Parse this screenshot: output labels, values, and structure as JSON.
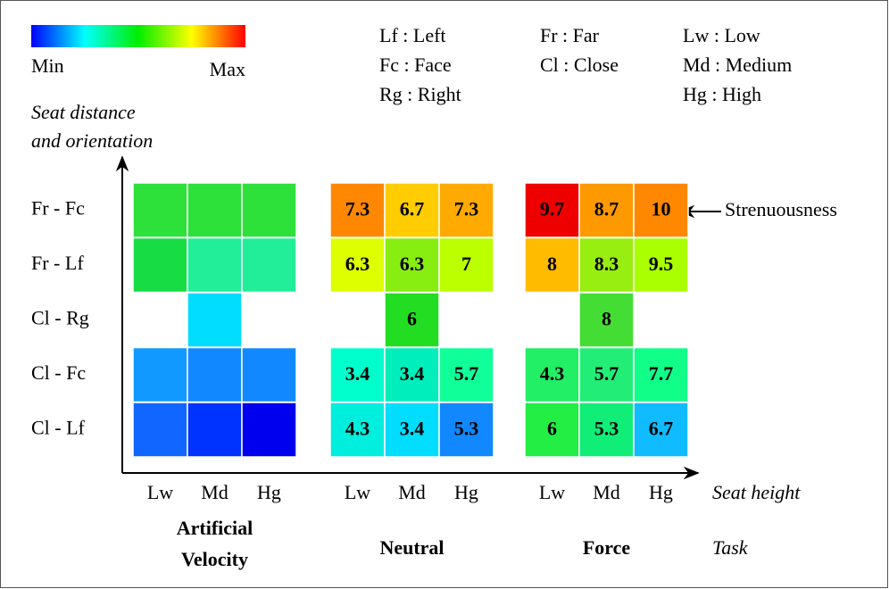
{
  "colorbar": {
    "min": "Min",
    "max": "Max",
    "colors": [
      "#0000ff",
      "#00ffff",
      "#00ee00",
      "#ffff00",
      "#ff0000"
    ]
  },
  "legend": [
    [
      "Lf : Left",
      "Fc : Face",
      "Rg : Right"
    ],
    [
      "Fr : Far",
      "Cl : Close"
    ],
    [
      "Lw : Low",
      "Md : Medium",
      "Hg : High"
    ]
  ],
  "y_axis_label": [
    "Seat distance",
    "and orientation"
  ],
  "rows": [
    "Fr - Fc",
    "Fr - Lf",
    "Cl - Rg",
    "Cl - Fc",
    "Cl - Lf"
  ],
  "panels": [
    {
      "name": [
        "Artificial",
        "Velocity"
      ],
      "columns": [
        "Lw",
        "Md",
        "Hg"
      ],
      "cells": [
        [
          {
            "color": "#2ee03a"
          },
          {
            "color": "#2ee03a"
          },
          {
            "color": "#2ee03a"
          }
        ],
        [
          {
            "color": "#18dc44"
          },
          {
            "color": "#22ee99"
          },
          {
            "color": "#22ee99"
          }
        ],
        [
          null,
          {
            "color": "#00ddff"
          },
          null
        ],
        [
          {
            "color": "#1199ff"
          },
          {
            "color": "#1188ff"
          },
          {
            "color": "#1188ff"
          }
        ],
        [
          {
            "color": "#1166ff"
          },
          {
            "color": "#0033ff"
          },
          {
            "color": "#0000ee"
          }
        ]
      ]
    },
    {
      "name": [
        "Neutral"
      ],
      "columns": [
        "Lw",
        "Md",
        "Hg"
      ],
      "cells": [
        [
          {
            "color": "#ff8800",
            "value": 7.3
          },
          {
            "color": "#ffcc00",
            "value": 6.7
          },
          {
            "color": "#ffaa00",
            "value": 7.3
          }
        ],
        [
          {
            "color": "#ddff00",
            "value": 6.3
          },
          {
            "color": "#88ee11",
            "value": 6.3
          },
          {
            "color": "#bbff00",
            "value": 7
          }
        ],
        [
          null,
          {
            "color": "#22dd22",
            "value": 6
          },
          null
        ],
        [
          {
            "color": "#00ffcc",
            "value": 3.4
          },
          {
            "color": "#00eebb",
            "value": 3.4
          },
          {
            "color": "#11ff99",
            "value": 5.7
          }
        ],
        [
          {
            "color": "#00eedd",
            "value": 4.3
          },
          {
            "color": "#00ddff",
            "value": 3.4
          },
          {
            "color": "#1188ff",
            "value": 5.3
          }
        ]
      ]
    },
    {
      "name": [
        "Force"
      ],
      "columns": [
        "Lw",
        "Md",
        "Hg"
      ],
      "cells": [
        [
          {
            "color": "#ee0000",
            "value": 9.7
          },
          {
            "color": "#ff9900",
            "value": 8.7
          },
          {
            "color": "#ff8800",
            "value": 10
          }
        ],
        [
          {
            "color": "#ffbb00",
            "value": 8
          },
          {
            "color": "#99ee11",
            "value": 8.3
          },
          {
            "color": "#aaff00",
            "value": 9.5
          }
        ],
        [
          null,
          {
            "color": "#44dd33",
            "value": 8
          },
          null
        ],
        [
          {
            "color": "#22ee66",
            "value": 4.3
          },
          {
            "color": "#22ee77",
            "value": 5.7
          },
          {
            "color": "#11ff88",
            "value": 7.7
          }
        ],
        [
          {
            "color": "#22ee44",
            "value": 6
          },
          {
            "color": "#11ee77",
            "value": 5.3
          },
          {
            "color": "#11bbff",
            "value": 6.7
          }
        ]
      ]
    }
  ],
  "x_axis_label": "Seat height",
  "task_label": "Task",
  "annotation": "Strenuousness"
}
